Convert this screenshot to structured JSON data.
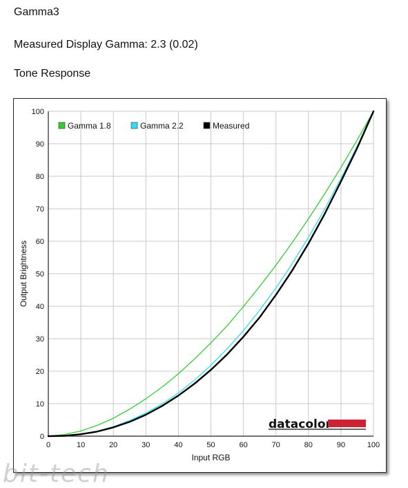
{
  "page": {
    "title": "Gamma3",
    "measured_label": "Measured Display Gamma: 2.3 (0.02)",
    "section_title": "Tone Response",
    "brand": "datacolor",
    "watermark": "bit-tech"
  },
  "colors": {
    "gamma_1_8": "#33cc33",
    "gamma_2_2": "#33ddee",
    "measured": "#000000",
    "grid": "#c8c8c8",
    "brand_bar": "#cc2233"
  },
  "chart_data": {
    "type": "line",
    "title": "",
    "xlabel": "Input RGB",
    "ylabel": "Output Brightness",
    "xlim": [
      0,
      100
    ],
    "ylim": [
      0,
      100
    ],
    "xticks": [
      "0",
      "10",
      "20",
      "30",
      "40",
      "50",
      "60",
      "70",
      "80",
      "90",
      "100"
    ],
    "yticks": [
      "0",
      "10",
      "20",
      "30",
      "40",
      "50",
      "60",
      "70",
      "80",
      "90",
      "100"
    ],
    "grid": true,
    "legend": "top-left",
    "x": [
      0,
      5,
      10,
      15,
      20,
      25,
      30,
      35,
      40,
      45,
      50,
      55,
      60,
      65,
      70,
      75,
      80,
      85,
      90,
      95,
      100
    ],
    "series": [
      {
        "name": "Gamma 1.8",
        "color": "#33cc33",
        "width": 1.3,
        "values": [
          0,
          0.5,
          1.6,
          3.3,
          5.5,
          8.3,
          11.5,
          15.1,
          19.2,
          23.8,
          28.7,
          34.0,
          39.9,
          46.1,
          52.6,
          59.6,
          66.9,
          74.6,
          82.7,
          91.2,
          100
        ]
      },
      {
        "name": "Gamma 2.2",
        "color": "#33ddee",
        "width": 1.3,
        "values": [
          0,
          0.1,
          0.6,
          1.5,
          2.9,
          4.8,
          7.1,
          9.9,
          13.3,
          17.3,
          21.8,
          26.9,
          32.5,
          38.8,
          45.6,
          53.1,
          61.2,
          69.9,
          79.3,
          89.3,
          100
        ]
      },
      {
        "name": "Measured",
        "color": "#000000",
        "width": 2.4,
        "values": [
          0,
          0.1,
          0.6,
          1.4,
          2.7,
          4.4,
          6.6,
          9.3,
          12.5,
          16.2,
          20.4,
          25.2,
          30.6,
          36.6,
          43.5,
          51.0,
          59.3,
          68.4,
          78.4,
          88.7,
          100
        ]
      }
    ]
  }
}
